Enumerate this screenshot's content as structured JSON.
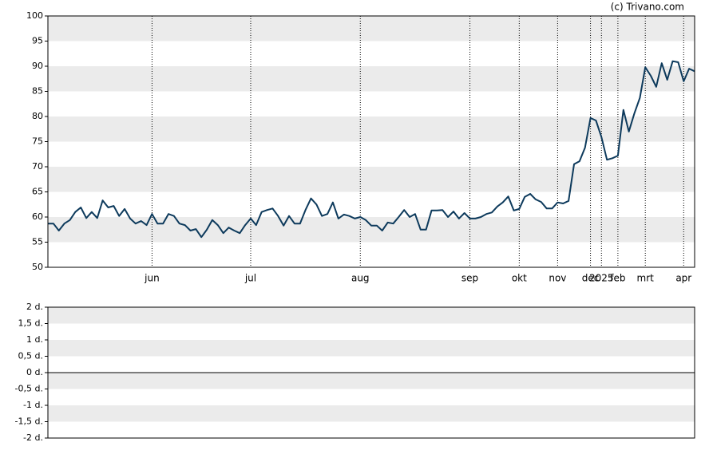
{
  "credit": "(c) Trivano.com",
  "chart_data": [
    {
      "type": "line",
      "series": [
        {
          "color": "#0d3a5c",
          "values": [
            58.7,
            58.7,
            57.3,
            58.7,
            59.4,
            61.0,
            61.9,
            59.8,
            61.0,
            59.8,
            63.3,
            61.9,
            62.2,
            60.2,
            61.6,
            59.7,
            58.7,
            59.2,
            58.4,
            60.6,
            58.7,
            58.7,
            60.6,
            60.2,
            58.7,
            58.4,
            57.3,
            57.6,
            56.0,
            57.5,
            59.4,
            58.4,
            56.8,
            57.9,
            57.3,
            56.8,
            58.4,
            59.7,
            58.4,
            61.0,
            61.4,
            61.7,
            60.2,
            58.3,
            60.2,
            58.7,
            58.7,
            61.4,
            63.7,
            62.5,
            60.2,
            60.6,
            62.9,
            59.7,
            60.5,
            60.2,
            59.7,
            60.0,
            59.4,
            58.3,
            58.3,
            57.3,
            58.9,
            58.7,
            60.0,
            61.4,
            60.0,
            60.6,
            57.5,
            57.5,
            61.3,
            61.3,
            61.4,
            60.0,
            61.1,
            59.7,
            60.8,
            59.7,
            59.7,
            60.0,
            60.6,
            60.9,
            62.1,
            62.9,
            64.1,
            61.3,
            61.6,
            64.0,
            64.6,
            63.5,
            63.0,
            61.7,
            61.7,
            62.9,
            62.7,
            63.2,
            70.5,
            71.1,
            73.8,
            79.7,
            79.2,
            75.9,
            71.4,
            71.7,
            72.2,
            81.3,
            77.0,
            80.6,
            83.7,
            89.8,
            88.1,
            85.9,
            90.6,
            87.3,
            91.0,
            90.8,
            87.0,
            89.5,
            89.0
          ]
        }
      ],
      "xlim": [
        0,
        118
      ],
      "xticks": [
        {
          "value": 19,
          "label": "jun"
        },
        {
          "value": 37,
          "label": "jul"
        },
        {
          "value": 57,
          "label": "aug"
        },
        {
          "value": 77,
          "label": "sep"
        },
        {
          "value": 86,
          "label": "okt"
        },
        {
          "value": 93,
          "label": "nov"
        },
        {
          "value": 99,
          "label": "dec"
        },
        {
          "value": 101,
          "label": "2025"
        },
        {
          "value": 104,
          "label": "feb"
        },
        {
          "value": 109,
          "label": "mrt"
        },
        {
          "value": 116,
          "label": "apr"
        }
      ],
      "ylim": [
        50,
        100
      ],
      "yticks": [
        50,
        55,
        60,
        65,
        70,
        75,
        80,
        85,
        90,
        95,
        100
      ]
    },
    {
      "type": "line",
      "ylim": [
        -2,
        2
      ],
      "yticks": [
        {
          "value": -2,
          "label": "-2 d."
        },
        {
          "value": -1.5,
          "label": "-1,5 d."
        },
        {
          "value": -1,
          "label": "-1 d."
        },
        {
          "value": -0.5,
          "label": "-0,5 d."
        },
        {
          "value": 0,
          "label": "0 d."
        },
        {
          "value": 0.5,
          "label": "0,5 d."
        },
        {
          "value": 1,
          "label": "1 d."
        },
        {
          "value": 1.5,
          "label": "1,5 d."
        },
        {
          "value": 2,
          "label": "2 d."
        }
      ]
    }
  ]
}
